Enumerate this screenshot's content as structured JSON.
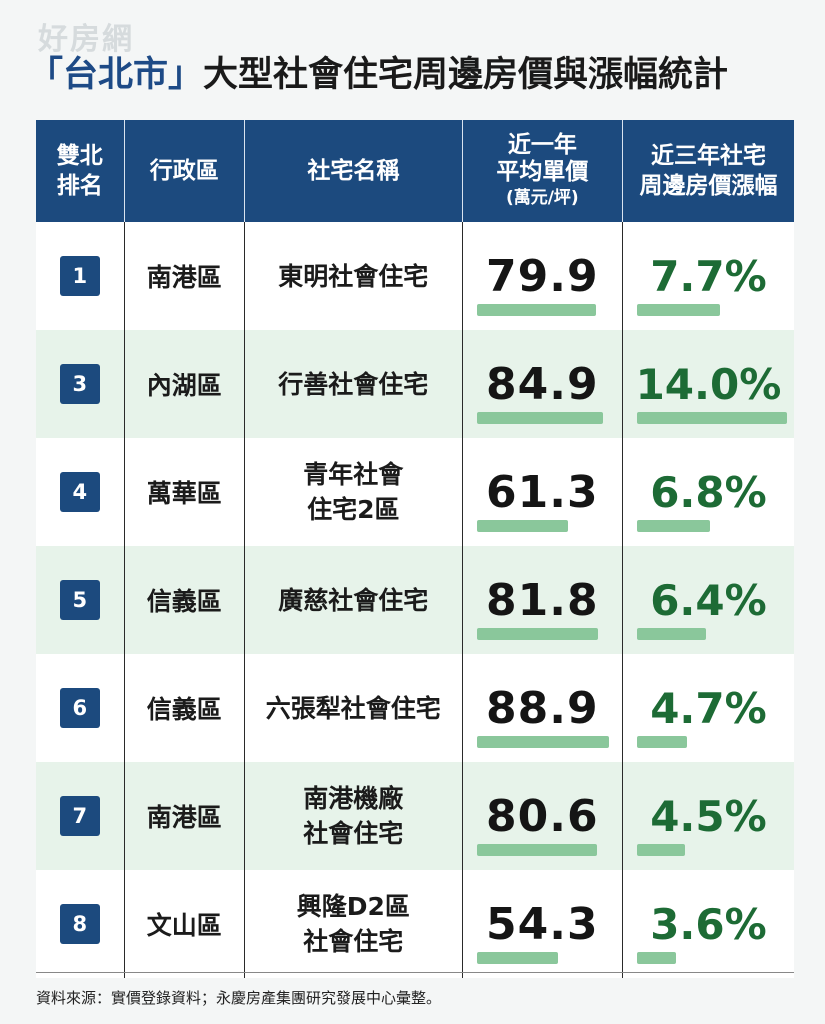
{
  "watermark": "好房網",
  "title": {
    "city": "「台北市」",
    "rest": "大型社會住宅周邊房價與漲幅統計"
  },
  "colors": {
    "header_bg": "#1c4a7e",
    "row_alt_bg": "#e7f3ea",
    "bar": "#8ac79b",
    "growth_text": "#1d6b35"
  },
  "table": {
    "headers": {
      "rank": [
        "雙北",
        "排名"
      ],
      "district": "行政區",
      "name": "社宅名稱",
      "price": [
        "近一年",
        "平均單價",
        "(萬元/坪)"
      ],
      "growth": [
        "近三年社宅",
        "周邊房價漲幅"
      ]
    },
    "rows": [
      {
        "rank": "1",
        "district": "南港區",
        "name": "東明社會住宅",
        "price": "79.9",
        "growth": "7.7%",
        "price_value": 79.9,
        "growth_value": 7.7
      },
      {
        "rank": "3",
        "district": "內湖區",
        "name": "行善社會住宅",
        "price": "84.9",
        "growth": "14.0%",
        "price_value": 84.9,
        "growth_value": 14.0
      },
      {
        "rank": "4",
        "district": "萬華區",
        "name": "青年社會\n住宅2區",
        "price": "61.3",
        "growth": "6.8%",
        "price_value": 61.3,
        "growth_value": 6.8
      },
      {
        "rank": "5",
        "district": "信義區",
        "name": "廣慈社會住宅",
        "price": "81.8",
        "growth": "6.4%",
        "price_value": 81.8,
        "growth_value": 6.4
      },
      {
        "rank": "6",
        "district": "信義區",
        "name": "六張犁社會住宅",
        "price": "88.9",
        "growth": "4.7%",
        "price_value": 88.9,
        "growth_value": 4.7
      },
      {
        "rank": "7",
        "district": "南港區",
        "name": "南港機廠\n社會住宅",
        "price": "80.6",
        "growth": "4.5%",
        "price_value": 80.6,
        "growth_value": 4.5
      },
      {
        "rank": "8",
        "district": "文山區",
        "name": "興隆D2區\n社會住宅",
        "price": "54.3",
        "growth": "3.6%",
        "price_value": 54.3,
        "growth_value": 3.6
      }
    ]
  },
  "footer": "資料來源：實價登錄資料；永慶房產集團研究發展中心彙整。"
}
